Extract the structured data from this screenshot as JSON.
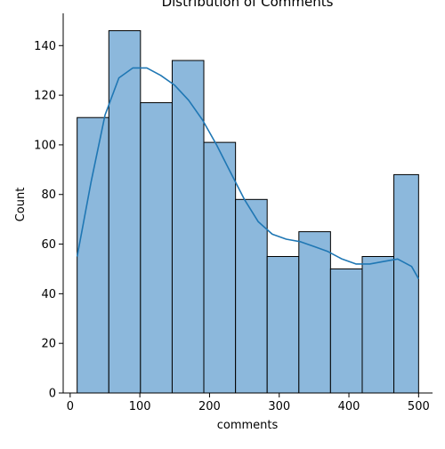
{
  "chart_data": {
    "type": "histogram",
    "title": "Distribution of Comments",
    "xlabel": "comments",
    "ylabel": "Count",
    "xlim": [
      -10,
      520
    ],
    "ylim": [
      0,
      153
    ],
    "xticks": [
      0,
      100,
      200,
      300,
      400,
      500
    ],
    "yticks": [
      0,
      20,
      40,
      60,
      80,
      100,
      120,
      140
    ],
    "bin_edges": [
      10,
      55.5,
      100.9,
      146.4,
      191.8,
      237.3,
      282.7,
      328.2,
      373.6,
      419.1,
      464.5,
      500
    ],
    "counts": [
      111,
      146,
      117,
      134,
      101,
      78,
      55,
      65,
      50,
      55,
      88
    ],
    "kde": {
      "x": [
        10,
        30,
        50,
        70,
        90,
        110,
        130,
        150,
        170,
        190,
        210,
        230,
        250,
        270,
        290,
        310,
        330,
        350,
        370,
        390,
        410,
        430,
        450,
        470,
        490,
        500
      ],
      "y": [
        55,
        85,
        112,
        127,
        131,
        131,
        128,
        124,
        118,
        110,
        100,
        89,
        78,
        69,
        64,
        62,
        61,
        59,
        57,
        54,
        52,
        52,
        53,
        54,
        51,
        46
      ]
    },
    "bar_color": "#8cb8dc",
    "bar_edge_color": "#000000",
    "line_color": "#1f77b4",
    "grid": false,
    "legend": "none"
  }
}
